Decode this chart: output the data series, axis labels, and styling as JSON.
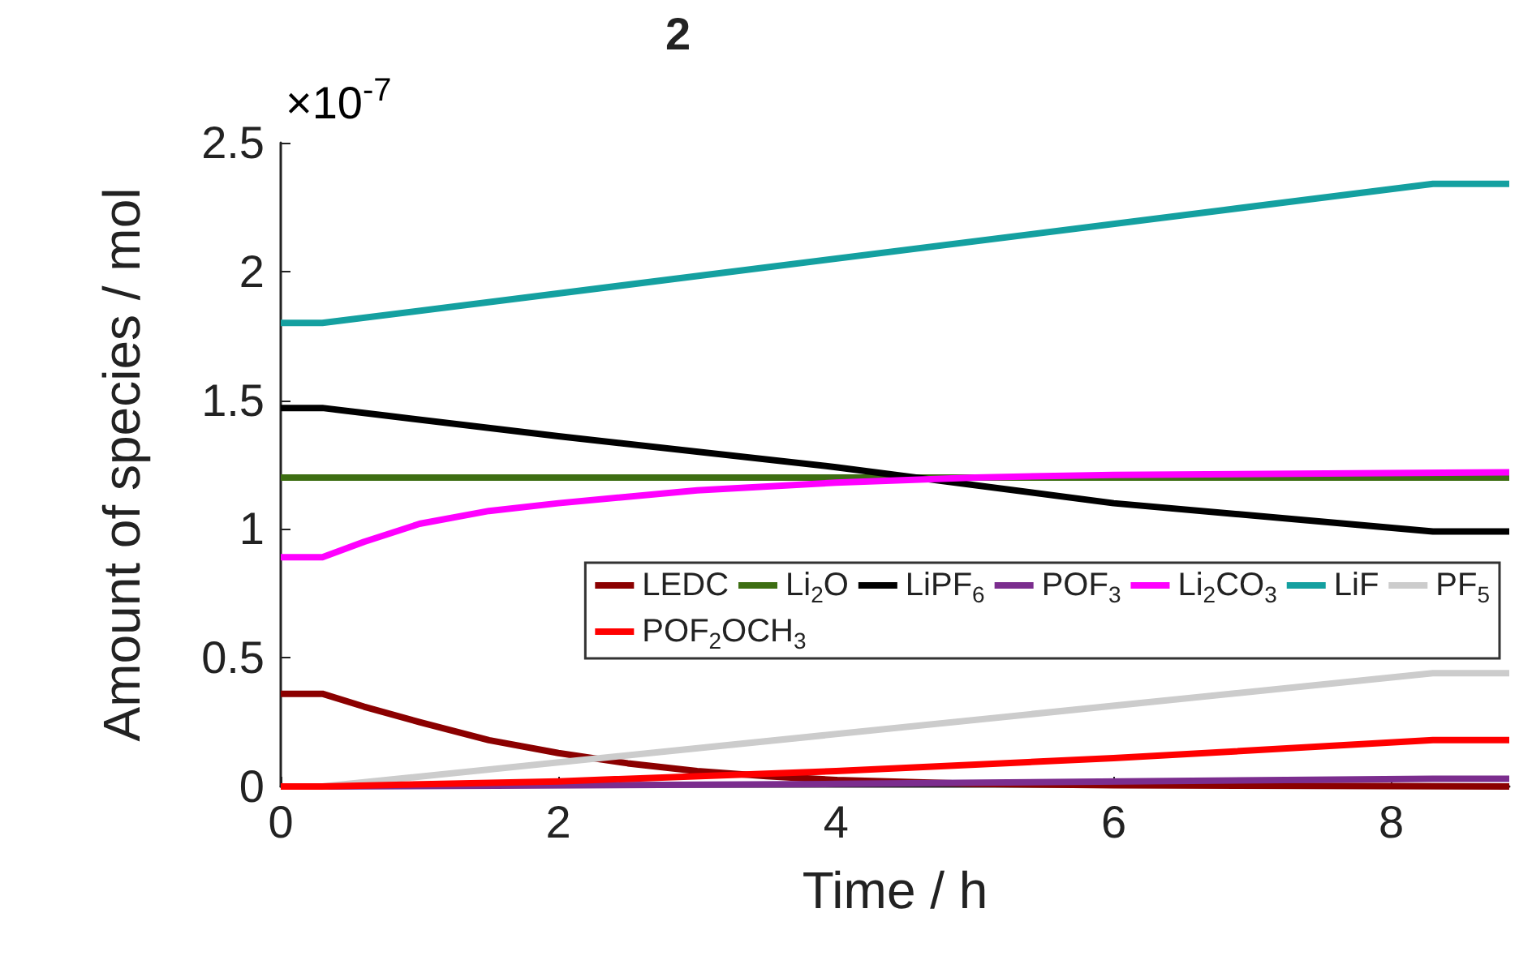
{
  "chart_data": {
    "type": "line",
    "title": "2",
    "xlabel": "Time / h",
    "ylabel": "Amount of species / mol",
    "annotations": [
      "×10$^{-7}$"
    ],
    "xlim": [
      0,
      8.85
    ],
    "xticks": [
      0,
      2,
      4,
      6,
      8
    ],
    "ylim": [
      0,
      2.5
    ],
    "yticks": [
      0,
      0.5,
      1,
      1.5,
      2,
      2.5
    ],
    "grid": false,
    "legend": "bottom right",
    "marker": "none",
    "line_style": "solid",
    "series": [
      {
        "name": "LEDC",
        "color": "#8b0000",
        "x": [
          0,
          0.3,
          0.6,
          1,
          1.5,
          2,
          2.5,
          3,
          3.5,
          4,
          5,
          6,
          8.85
        ],
        "values": [
          0.36,
          0.36,
          0.31,
          0.25,
          0.18,
          0.13,
          0.09,
          0.06,
          0.04,
          0.025,
          0.01,
          0.005,
          0
        ]
      },
      {
        "name": "Li$_{2}$O",
        "color": "#3d6e12",
        "x": [
          0,
          8.85
        ],
        "values": [
          1.2,
          1.2
        ]
      },
      {
        "name": "LiPF$_{6}$",
        "color": "#000000",
        "x": [
          0,
          0.3,
          2,
          4,
          6,
          8.3,
          8.85
        ],
        "values": [
          1.47,
          1.47,
          1.36,
          1.24,
          1.1,
          0.99,
          0.99
        ]
      },
      {
        "name": "POF$_{3}$",
        "color": "#7b2d8e",
        "x": [
          0,
          0.3,
          4,
          8.3,
          8.85
        ],
        "values": [
          0,
          0,
          0.01,
          0.03,
          0.03
        ]
      },
      {
        "name": "Li$_{2}$CO$_{3}$",
        "color": "#ff00ff",
        "x": [
          0,
          0.3,
          0.6,
          1,
          1.5,
          2,
          3,
          4,
          5,
          6,
          8.85
        ],
        "values": [
          0.89,
          0.89,
          0.95,
          1.02,
          1.07,
          1.1,
          1.15,
          1.18,
          1.2,
          1.21,
          1.22
        ]
      },
      {
        "name": "LiF",
        "color": "#14a0a0",
        "x": [
          0,
          0.3,
          8.3,
          8.85
        ],
        "values": [
          1.8,
          1.8,
          2.34,
          2.34
        ]
      },
      {
        "name": "PF$_{5}$",
        "color": "#cccccc",
        "x": [
          0,
          0.3,
          8.3,
          8.85
        ],
        "values": [
          0,
          0,
          0.44,
          0.44
        ]
      },
      {
        "name": "POF$_{2}$OCH$_{3}$",
        "color": "#ff0000",
        "x": [
          0,
          0.3,
          2,
          4,
          6,
          8.3,
          8.85
        ],
        "values": [
          0,
          0,
          0.02,
          0.06,
          0.11,
          0.18,
          0.18
        ]
      }
    ]
  }
}
